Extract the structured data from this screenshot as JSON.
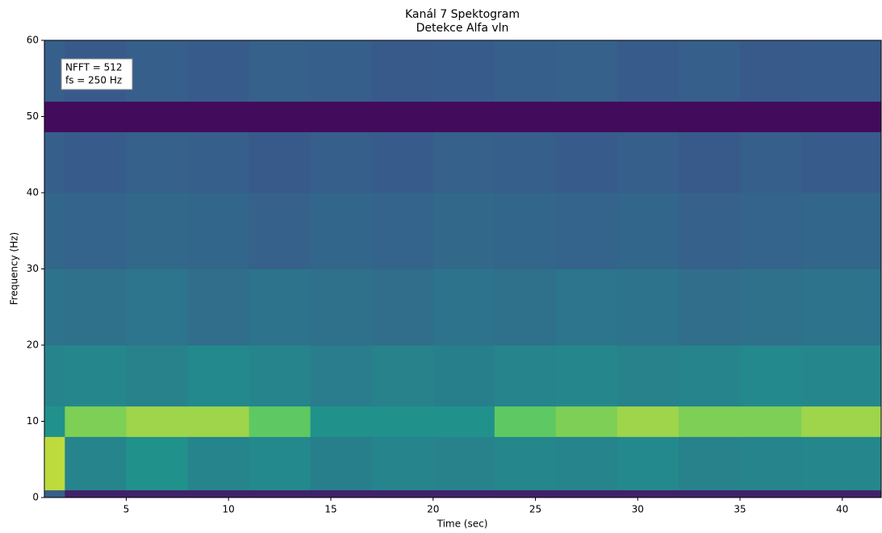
{
  "chart_data": {
    "type": "heatmap",
    "title": [
      "Kanál 7 Spektogram",
      "Detekce Alfa vln"
    ],
    "xlabel": "Time (sec)",
    "ylabel": "Frequency (Hz)",
    "annotation": [
      "NFFT = 512",
      "fs = 250 Hz"
    ],
    "colormap": "viridis",
    "x_bins": [
      1,
      2,
      5,
      8,
      11,
      14,
      17,
      20,
      23,
      26,
      29,
      32,
      35,
      38,
      41.9
    ],
    "y_bins": [
      0,
      1,
      8,
      12,
      20,
      30,
      40,
      48,
      52,
      60
    ],
    "values": [
      [
        0.3,
        0.1,
        0.1,
        0.1,
        0.1,
        0.1,
        0.1,
        0.1,
        0.1,
        0.1,
        0.1,
        0.1,
        0.1,
        0.1
      ],
      [
        0.9,
        0.45,
        0.5,
        0.45,
        0.47,
        0.43,
        0.45,
        0.44,
        0.46,
        0.45,
        0.47,
        0.44,
        0.45,
        0.46
      ],
      [
        0.5,
        0.8,
        0.85,
        0.85,
        0.75,
        0.5,
        0.5,
        0.5,
        0.75,
        0.8,
        0.85,
        0.8,
        0.8,
        0.85
      ],
      [
        0.45,
        0.46,
        0.44,
        0.47,
        0.45,
        0.42,
        0.44,
        0.43,
        0.45,
        0.46,
        0.44,
        0.45,
        0.47,
        0.46
      ],
      [
        0.38,
        0.37,
        0.39,
        0.36,
        0.38,
        0.37,
        0.36,
        0.38,
        0.37,
        0.39,
        0.38,
        0.36,
        0.37,
        0.38
      ],
      [
        0.33,
        0.32,
        0.34,
        0.33,
        0.31,
        0.33,
        0.32,
        0.34,
        0.33,
        0.32,
        0.33,
        0.31,
        0.32,
        0.33
      ],
      [
        0.3,
        0.29,
        0.31,
        0.3,
        0.28,
        0.3,
        0.29,
        0.31,
        0.3,
        0.29,
        0.3,
        0.28,
        0.3,
        0.29
      ],
      [
        0.03,
        0.03,
        0.03,
        0.03,
        0.03,
        0.03,
        0.03,
        0.03,
        0.03,
        0.03,
        0.03,
        0.03,
        0.03,
        0.03
      ],
      [
        0.3,
        0.28,
        0.3,
        0.29,
        0.31,
        0.3,
        0.28,
        0.29,
        0.3,
        0.31,
        0.29,
        0.3,
        0.28,
        0.29
      ]
    ],
    "xlim": [
      1,
      41.9
    ],
    "ylim": [
      0,
      60
    ],
    "xticks": [
      5,
      10,
      15,
      20,
      25,
      30,
      35,
      40
    ],
    "yticks": [
      0,
      10,
      20,
      30,
      40,
      50,
      60
    ]
  }
}
